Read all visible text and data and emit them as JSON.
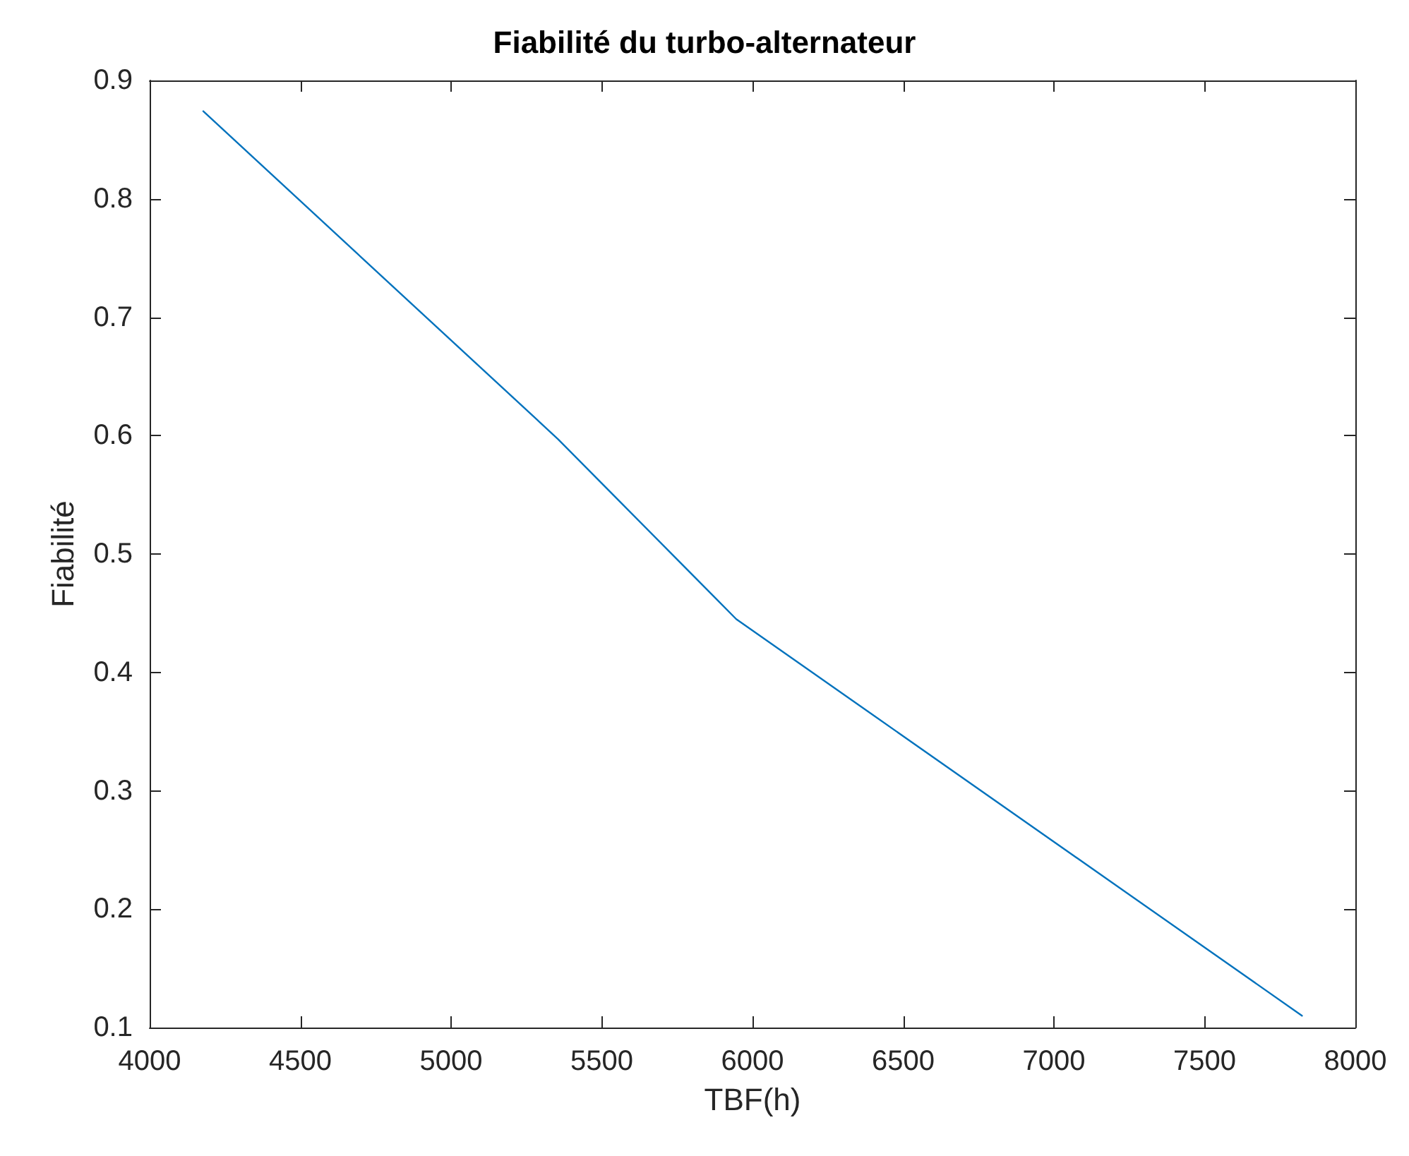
{
  "chart_data": {
    "type": "line",
    "title": "Fiabilité du turbo-alternateur",
    "xlabel": "TBF(h)",
    "ylabel": "Fiabilité",
    "x": [
      4178,
      5355,
      5946,
      7823
    ],
    "series": [
      {
        "color": "#0072bd",
        "values": [
          0.874,
          0.597,
          0.445,
          0.11
        ]
      }
    ],
    "xlim": [
      4000,
      8000
    ],
    "xticks": [
      4000,
      4500,
      5000,
      5500,
      6000,
      6500,
      7000,
      7500,
      8000
    ],
    "ylim": [
      0.1,
      0.9
    ],
    "yticks": [
      0.1,
      0.2,
      0.3,
      0.4,
      0.5,
      0.6,
      0.7,
      0.8,
      0.9
    ],
    "grid": false,
    "marker": "none",
    "line_style": "solid"
  }
}
